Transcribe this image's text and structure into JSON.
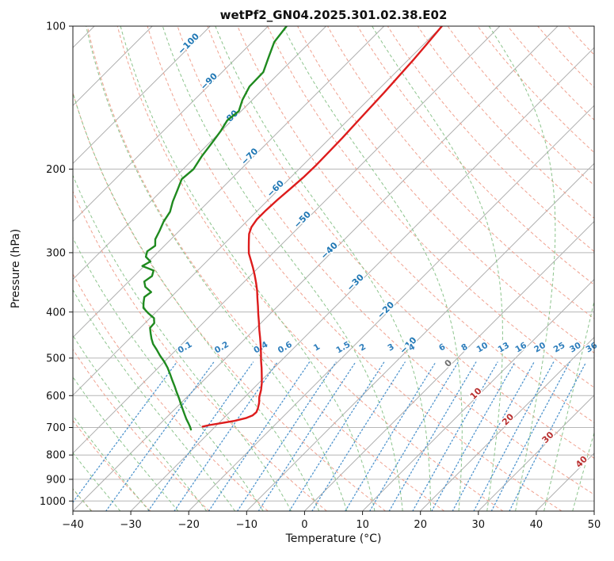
{
  "title": "wetPf2_GN04.2025.301.02.38.E02",
  "axes": {
    "x_label": "Temperature (°C)",
    "y_label": "Pressure (hPa)",
    "x_ticks": [
      -40,
      -30,
      -20,
      -10,
      0,
      10,
      20,
      30,
      40,
      50
    ],
    "y_ticks": [
      100,
      200,
      300,
      400,
      500,
      600,
      700,
      800,
      900,
      1000
    ]
  },
  "chart_data": {
    "type": "line",
    "subtype": "skew-t-log-p",
    "title": "wetPf2_GN04.2025.301.02.38.E02",
    "xlabel": "Temperature (°C)",
    "ylabel": "Pressure (hPa)",
    "xlim": [
      -40,
      50
    ],
    "p_lim": [
      100,
      1050
    ],
    "skew_deg": 45,
    "grid": "on",
    "series": [
      {
        "name": "temperature",
        "color": "#dd1c1c",
        "points": [
          [
            100,
            -60.0
          ],
          [
            109,
            -59.5
          ],
          [
            118,
            -59.1
          ],
          [
            128,
            -58.8
          ],
          [
            138,
            -58.5
          ],
          [
            149,
            -58.3
          ],
          [
            160,
            -58.1
          ],
          [
            172,
            -57.9
          ],
          [
            184,
            -57.8
          ],
          [
            196,
            -57.7
          ],
          [
            208,
            -57.8
          ],
          [
            220,
            -58.1
          ],
          [
            232,
            -58.4
          ],
          [
            244,
            -58.6
          ],
          [
            255,
            -58.6
          ],
          [
            265,
            -58.2
          ],
          [
            274,
            -57.4
          ],
          [
            283,
            -56.3
          ],
          [
            292,
            -55.2
          ],
          [
            301,
            -54.1
          ],
          [
            311,
            -52.6
          ],
          [
            322,
            -51.0
          ],
          [
            334,
            -49.4
          ],
          [
            347,
            -47.8
          ],
          [
            360,
            -46.3
          ],
          [
            374,
            -44.9
          ],
          [
            389,
            -43.4
          ],
          [
            404,
            -42.0
          ],
          [
            420,
            -40.5
          ],
          [
            436,
            -39.1
          ],
          [
            453,
            -37.6
          ],
          [
            470,
            -36.2
          ],
          [
            488,
            -34.8
          ],
          [
            506,
            -33.5
          ],
          [
            525,
            -32.1
          ],
          [
            544,
            -30.8
          ],
          [
            564,
            -29.5
          ],
          [
            584,
            -28.4
          ],
          [
            604,
            -27.5
          ],
          [
            622,
            -26.5
          ],
          [
            638,
            -25.8
          ],
          [
            650,
            -25.4
          ],
          [
            660,
            -25.5
          ],
          [
            669,
            -26.2
          ],
          [
            678,
            -27.7
          ],
          [
            686,
            -29.7
          ],
          [
            692,
            -31.3
          ],
          [
            697,
            -32.2
          ]
        ]
      },
      {
        "name": "dewpoint",
        "color": "#1f8a1f",
        "points": [
          [
            100,
            -86.8
          ],
          [
            108,
            -86.2
          ],
          [
            116,
            -84.6
          ],
          [
            125,
            -82.9
          ],
          [
            134,
            -82.8
          ],
          [
            143,
            -81.7
          ],
          [
            151,
            -80.4
          ],
          [
            158,
            -80.8
          ],
          [
            166,
            -80.1
          ],
          [
            175,
            -79.6
          ],
          [
            188,
            -79.0
          ],
          [
            200,
            -78.2
          ],
          [
            210,
            -78.5
          ],
          [
            222,
            -77.3
          ],
          [
            234,
            -76.2
          ],
          [
            246,
            -74.9
          ],
          [
            258,
            -74.3
          ],
          [
            270,
            -73.4
          ],
          [
            281,
            -72.7
          ],
          [
            290,
            -71.6
          ],
          [
            298,
            -72.0
          ],
          [
            306,
            -71.3
          ],
          [
            313,
            -69.7
          ],
          [
            320,
            -70.3
          ],
          [
            327,
            -67.6
          ],
          [
            336,
            -66.9
          ],
          [
            345,
            -67.3
          ],
          [
            354,
            -66.2
          ],
          [
            363,
            -64.3
          ],
          [
            372,
            -64.6
          ],
          [
            382,
            -63.8
          ],
          [
            392,
            -62.9
          ],
          [
            402,
            -61.2
          ],
          [
            412,
            -59.3
          ],
          [
            422,
            -58.4
          ],
          [
            432,
            -58.3
          ],
          [
            443,
            -57.3
          ],
          [
            455,
            -56.2
          ],
          [
            467,
            -55.0
          ],
          [
            480,
            -53.4
          ],
          [
            494,
            -51.8
          ],
          [
            509,
            -50.0
          ],
          [
            524,
            -48.4
          ],
          [
            540,
            -46.9
          ],
          [
            556,
            -45.5
          ],
          [
            573,
            -44.0
          ],
          [
            590,
            -42.6
          ],
          [
            607,
            -41.2
          ],
          [
            624,
            -39.9
          ],
          [
            641,
            -38.6
          ],
          [
            657,
            -37.4
          ],
          [
            672,
            -36.3
          ],
          [
            686,
            -35.2
          ],
          [
            698,
            -34.3
          ],
          [
            707,
            -33.7
          ]
        ]
      }
    ],
    "isotherm_labels": {
      "color_neg": "#1f77b4",
      "color_zero": "#6f6f6f",
      "color_pos": "#b93030",
      "items": [
        {
          "t": -100,
          "p": 110
        },
        {
          "t": -90,
          "p": 132
        },
        {
          "t": -80,
          "p": 158
        },
        {
          "t": -70,
          "p": 190
        },
        {
          "t": -60,
          "p": 222
        },
        {
          "t": -50,
          "p": 258
        },
        {
          "t": -40,
          "p": 300
        },
        {
          "t": -30,
          "p": 350
        },
        {
          "t": -20,
          "p": 400
        },
        {
          "t": -10,
          "p": 475
        },
        {
          "t": 0,
          "p": 518
        },
        {
          "t": 10,
          "p": 600
        },
        {
          "t": 20,
          "p": 680
        },
        {
          "t": 30,
          "p": 742
        },
        {
          "t": 40,
          "p": 835
        }
      ]
    },
    "mixing_ratio_labels": {
      "color": "#2e7ebc",
      "p": 480,
      "values": [
        0.1,
        0.2,
        0.4,
        0.6,
        1,
        1.5,
        2,
        3,
        4,
        6,
        8,
        10,
        13,
        16,
        20,
        25,
        30,
        36
      ]
    },
    "background_lines": {
      "isotherms": {
        "color": "#aeaeae",
        "min": -160,
        "max": 60,
        "step": 10
      },
      "dry_adiabats": {
        "color": "#f0a18f",
        "theta_min": -40,
        "theta_max": 260,
        "step": 10
      },
      "moist_adiabats": {
        "color": "#8cc48c",
        "t0_min": -40,
        "t0_max": 45,
        "step": 5
      },
      "mixing_ratios": {
        "color": "#4f94cd",
        "values": [
          0.1,
          0.2,
          0.4,
          0.6,
          1,
          1.5,
          2,
          3,
          4,
          6,
          8,
          10,
          13,
          16,
          20,
          25,
          30,
          36
        ],
        "p_top": 510
      },
      "pressure_grid": {
        "color": "#b6b6b6"
      }
    }
  }
}
